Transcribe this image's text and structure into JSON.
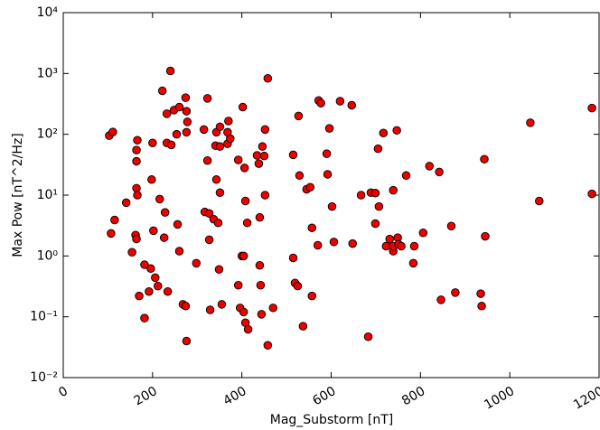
{
  "chart_data": {
    "type": "scatter",
    "xlabel": "Mag_Substorm [nT]",
    "ylabel": "Max Pow [nT^2/Hz]",
    "color": "#ee0000",
    "edgecolor": "#000000",
    "xlim": [
      0,
      1200
    ],
    "xticks": [
      0,
      200,
      400,
      600,
      800,
      1000,
      1200
    ],
    "ylim": [
      0.01,
      10000
    ],
    "yscale": "log",
    "yticks": [
      {
        "value": 0.01,
        "label": "10⁻²"
      },
      {
        "value": 0.1,
        "label": "10⁻¹"
      },
      {
        "value": 1,
        "label": "10⁰"
      },
      {
        "value": 10,
        "label": "10¹"
      },
      {
        "value": 100,
        "label": "10²"
      },
      {
        "value": 1000,
        "label": "10³"
      },
      {
        "value": 10000,
        "label": "10⁴"
      }
    ],
    "grid": false,
    "x": [
      103,
      111,
      107,
      115,
      141,
      154,
      166,
      164,
      164,
      164,
      166,
      162,
      164,
      170,
      182,
      182,
      192,
      196,
      198,
      200,
      202,
      206,
      212,
      216,
      222,
      228,
      226,
      232,
      232,
      234,
      240,
      242,
      248,
      254,
      256,
      260,
      260,
      268,
      274,
      278,
      274,
      276,
      276,
      276,
      298,
      315,
      317,
      323,
      323,
      327,
      327,
      329,
      337,
      341,
      343,
      343,
      347,
      351,
      351,
      349,
      351,
      355,
      368,
      368,
      370,
      374,
      392,
      392,
      396,
      400,
      404,
      408,
      406,
      412,
      404,
      402,
      408,
      414,
      434,
      438,
      440,
      440,
      442,
      444,
      446,
      450,
      452,
      452,
      458,
      458,
      470,
      515,
      515,
      519,
      525,
      527,
      529,
      537,
      545,
      553,
      557,
      557,
      570,
      572,
      577,
      590,
      592,
      596,
      602,
      606,
      620,
      646,
      648,
      667,
      689,
      683,
      699,
      705,
      699,
      707,
      717,
      723,
      731,
      739,
      739,
      739,
      747,
      749,
      751,
      757,
      768,
      784,
      786,
      806,
      820,
      842,
      846,
      869,
      878,
      935,
      937,
      945,
      943,
      1046,
      1066,
      1184,
      1184
    ],
    "values": [
      95,
      109,
      2.35,
      3.9,
      7.5,
      1.15,
      80,
      55,
      36,
      13,
      10,
      2.2,
      1.9,
      0.22,
      0.72,
      0.095,
      0.26,
      0.62,
      18,
      72,
      2.6,
      0.44,
      0.32,
      8.6,
      520,
      5.2,
      2.0,
      72,
      218,
      0.26,
      1100,
      67,
      250,
      100,
      3.3,
      280,
      1.2,
      0.16,
      0.15,
      160,
      400,
      0.04,
      240,
      108,
      0.76,
      120,
      5.3,
      390,
      37,
      1.85,
      5,
      0.13,
      4,
      65,
      108,
      18,
      3.5,
      63,
      133,
      0.6,
      11,
      0.16,
      70,
      108,
      165,
      85,
      38,
      0.33,
      0.14,
      1.0,
      1.0,
      8,
      28,
      3.5,
      0.12,
      280,
      0.08,
      0.062,
      45,
      33,
      4.3,
      0.7,
      0.33,
      0.11,
      63,
      44,
      120,
      10,
      0.034,
      830,
      0.14,
      46,
      0.93,
      0.36,
      0.32,
      200,
      21,
      0.07,
      12.5,
      13.5,
      0.22,
      2.9,
      1.5,
      360,
      325,
      48,
      22,
      125,
      6.5,
      1.7,
      350,
      300,
      1.6,
      10,
      11,
      0.047,
      10.8,
      58,
      3.4,
      6.5,
      105,
      1.45,
      1.9,
      12,
      1.2,
      1.45,
      116,
      2.0,
      1.55,
      1.45,
      21,
      0.76,
      1.45,
      2.4,
      30,
      24,
      0.19,
      3.1,
      0.25,
      0.24,
      0.15,
      2.1,
      39,
      155,
      8,
      270,
      10.5
    ]
  }
}
